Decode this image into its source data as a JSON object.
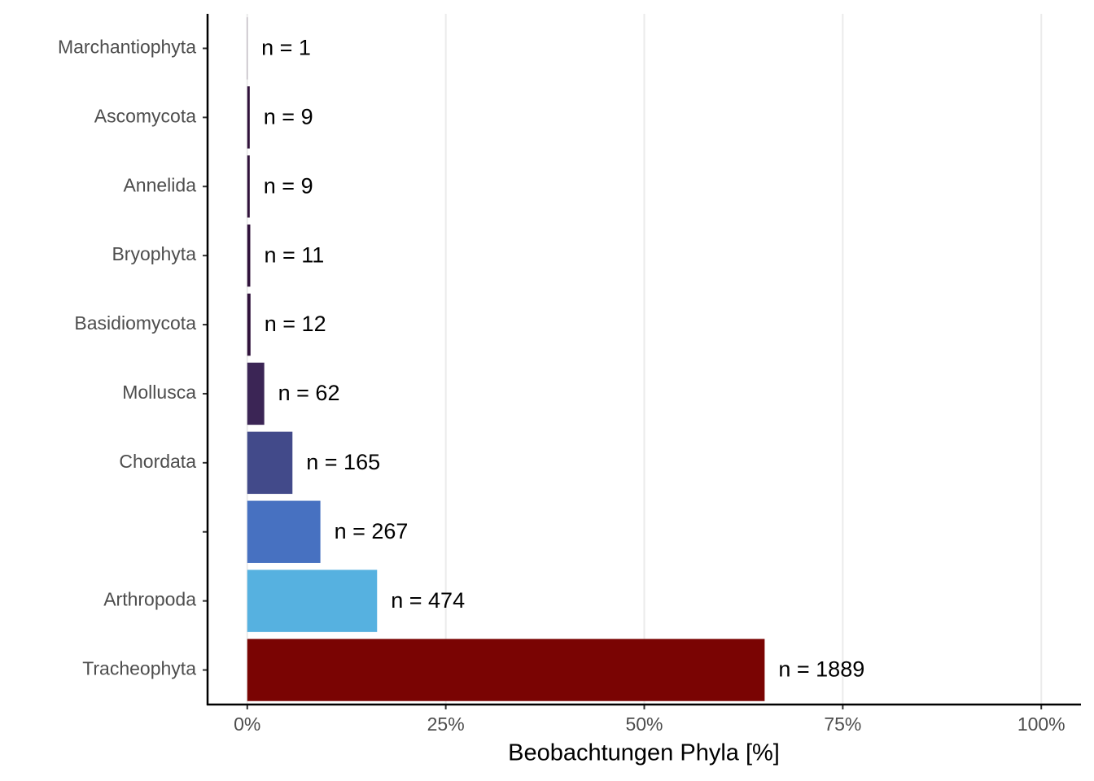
{
  "chart_data": {
    "type": "barh",
    "categories": [
      "Marchantiophyta",
      "Ascomycota",
      "Annelida",
      "Bryophyta",
      "Basidiomycota",
      "Mollusca",
      "Chordata",
      null,
      "Arthropoda",
      "Tracheophyta"
    ],
    "values": [
      0.03,
      0.31,
      0.31,
      0.38,
      0.41,
      2.14,
      5.69,
      9.21,
      16.35,
      65.16
    ],
    "colors": [
      "#30123b",
      "#30123b",
      "#30123b",
      "#30123b",
      "#30123b",
      "#3b2555",
      "#424a8a",
      "#4771c1",
      "#56b1e0",
      "#7a0403"
    ],
    "annotations": [
      "n = 1",
      "n = 9",
      "n = 9",
      "n = 11",
      "n = 12",
      "n = 62",
      "n = 165",
      "n = 267",
      "n = 474",
      "n = 1889"
    ],
    "x_label": "Beobachtungen Phyla [%]",
    "xlim": [
      -5,
      105
    ],
    "xticks": [
      {
        "value": 0,
        "label": "0%"
      },
      {
        "value": 25,
        "label": "25%"
      },
      {
        "value": 50,
        "label": "50%"
      },
      {
        "value": 75,
        "label": "75%"
      },
      {
        "value": 100,
        "label": "100%"
      }
    ],
    "grid": true
  }
}
